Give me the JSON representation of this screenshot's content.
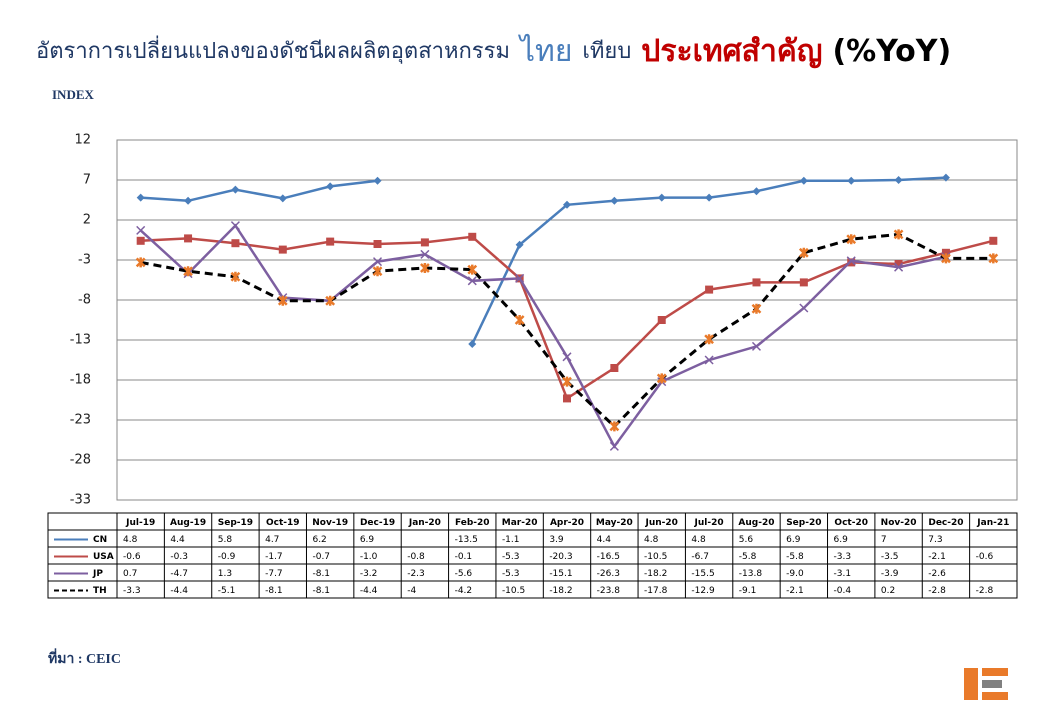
{
  "chart_data": {
    "type": "line",
    "title_parts": [
      {
        "text": "อัตราการเปลี่ยนแปลงของดัชนีผลผลิตอุตสาหกรรม",
        "color": "#1f3864"
      },
      {
        "text": "ไทย",
        "color": "#4a7ebb"
      },
      {
        "text": "เทียบ",
        "color": "#1f3864"
      },
      {
        "text": "ประเทศสำคัญ",
        "color": "#c00000"
      },
      {
        "text": "(%YoY)",
        "color": "#000000"
      }
    ],
    "y_label": "INDEX",
    "source": "ที่มา : CEIC",
    "categories": [
      "Jul-19",
      "Aug-19",
      "Sep-19",
      "Oct-19",
      "Nov-19",
      "Dec-19",
      "Jan-20",
      "Feb-20",
      "Mar-20",
      "Apr-20",
      "May-20",
      "Jun-20",
      "Jul-20",
      "Aug-20",
      "Sep-20",
      "Oct-20",
      "Nov-20",
      "Dec-20",
      "Jan-21"
    ],
    "ylim": [
      -33,
      12
    ],
    "yticks": [
      12,
      7,
      2,
      -3,
      -8,
      -13,
      -18,
      -23,
      -28,
      -33
    ],
    "grid": true,
    "series": [
      {
        "name": "CN",
        "color": "#4a7ebb",
        "marker": "diamond",
        "values": [
          4.8,
          4.4,
          5.8,
          4.7,
          6.2,
          6.9,
          null,
          -13.5,
          -1.1,
          3.9,
          4.4,
          4.8,
          4.8,
          5.6,
          6.9,
          6.9,
          7,
          7.3,
          null
        ],
        "value_labels": [
          "4.8",
          "4.4",
          "5.8",
          "4.7",
          "6.2",
          "6.9",
          null,
          "-13.5",
          "-1.1",
          "3.9",
          "4.4",
          "4.8",
          "4.8",
          "5.6",
          "6.9",
          "6.9",
          "7",
          "7.3",
          null
        ]
      },
      {
        "name": "USA",
        "color": "#be4b48",
        "marker": "square",
        "values": [
          -0.6,
          -0.3,
          -0.9,
          -1.7,
          -0.7,
          -1.0,
          -0.8,
          -0.1,
          -5.3,
          -20.3,
          -16.5,
          -10.5,
          -6.7,
          -5.8,
          -5.8,
          -3.3,
          -3.5,
          -2.1,
          -0.6
        ],
        "value_labels": [
          "-0.6",
          "-0.3",
          "-0.9",
          "-1.7",
          "-0.7",
          "-1.0",
          "-0.8",
          "-0.1",
          "-5.3",
          "-20.3",
          "-16.5",
          "-10.5",
          "-6.7",
          "-5.8",
          "-5.8",
          "-3.3",
          "-3.5",
          "-2.1",
          "-0.6"
        ]
      },
      {
        "name": "JP",
        "color": "#7d5fa0",
        "marker": "x",
        "values": [
          0.7,
          -4.7,
          1.3,
          -7.7,
          -8.1,
          -3.2,
          -2.3,
          -5.6,
          -5.3,
          -15.1,
          -26.3,
          -18.2,
          -15.5,
          -13.8,
          -9.0,
          -3.1,
          -3.9,
          -2.6,
          null
        ],
        "value_labels": [
          "0.7",
          "-4.7",
          "1.3",
          "-7.7",
          "-8.1",
          "-3.2",
          "-2.3",
          "-5.6",
          "-5.3",
          "-15.1",
          "-26.3",
          "-18.2",
          "-15.5",
          "-13.8",
          "-9.0",
          "-3.1",
          "-3.9",
          "-2.6",
          null
        ]
      },
      {
        "name": "TH",
        "color": "#000000",
        "marker": "star",
        "dashed": true,
        "values": [
          -3.3,
          -4.4,
          -5.1,
          -8.1,
          -8.1,
          -4.4,
          -4,
          -4.2,
          -10.5,
          -18.2,
          -23.8,
          -17.8,
          -12.9,
          -9.1,
          -2.1,
          -0.4,
          0.2,
          -2.8,
          -2.8
        ],
        "value_labels": [
          "-3.3",
          "-4.4",
          "-5.1",
          "-8.1",
          "-8.1",
          "-4.4",
          "-4",
          "-4.2",
          "-10.5",
          "-18.2",
          "-23.8",
          "-17.8",
          "-12.9",
          "-9.1",
          "-2.1",
          "-0.4",
          "0.2",
          "-2.8",
          "-2.8"
        ]
      }
    ]
  }
}
